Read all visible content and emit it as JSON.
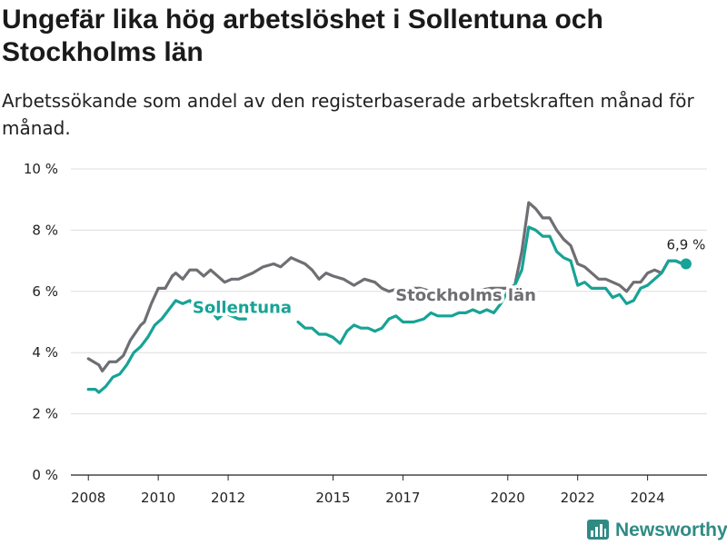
{
  "title": "Ungefär lika hög arbetslöshet i Sollentuna och Stockholms län",
  "subtitle": "Arbetssökande som andel av den registerbaserade arbetskraften månad för månad.",
  "brand": {
    "name": "Newsworthy",
    "icon": "newsworthy-logo-icon"
  },
  "colors": {
    "sollentuna": "#17a396",
    "stockholm": "#6e6e73",
    "grid": "#dddddd"
  },
  "chart_data": {
    "type": "line",
    "title": "Ungefär lika hög arbetslöshet i Sollentuna och Stockholms län",
    "xlabel": "",
    "ylabel": "",
    "xlim": [
      2007.5,
      2025.7
    ],
    "ylim": [
      0,
      10
    ],
    "y_ticks": [
      {
        "value": 0,
        "label": "0 %"
      },
      {
        "value": 2,
        "label": "2 %"
      },
      {
        "value": 4,
        "label": "4 %"
      },
      {
        "value": 6,
        "label": "6 %"
      },
      {
        "value": 8,
        "label": "8 %"
      },
      {
        "value": 10,
        "label": "10 %"
      }
    ],
    "x_ticks": [
      {
        "value": 2008,
        "label": "2008"
      },
      {
        "value": 2010,
        "label": "2010"
      },
      {
        "value": 2012,
        "label": "2012"
      },
      {
        "value": 2015,
        "label": "2015"
      },
      {
        "value": 2017,
        "label": "2017"
      },
      {
        "value": 2020,
        "label": "2020"
      },
      {
        "value": 2022,
        "label": "2022"
      },
      {
        "value": 2024,
        "label": "2024"
      }
    ],
    "grid": true,
    "legend": "inline labels",
    "last_value_label": "6,9 %",
    "series": [
      {
        "name": "Stockholms län",
        "label_at": [
          2018.8,
          5.7
        ],
        "points": [
          [
            2008.0,
            3.8
          ],
          [
            2008.3,
            3.6
          ],
          [
            2008.4,
            3.4
          ],
          [
            2008.6,
            3.7
          ],
          [
            2008.8,
            3.7
          ],
          [
            2009.0,
            3.9
          ],
          [
            2009.2,
            4.4
          ],
          [
            2009.5,
            4.9
          ],
          [
            2009.6,
            5.0
          ],
          [
            2009.8,
            5.6
          ],
          [
            2010.0,
            6.1
          ],
          [
            2010.2,
            6.1
          ],
          [
            2010.4,
            6.5
          ],
          [
            2010.5,
            6.6
          ],
          [
            2010.7,
            6.4
          ],
          [
            2010.9,
            6.7
          ],
          [
            2011.1,
            6.7
          ],
          [
            2011.3,
            6.5
          ],
          [
            2011.5,
            6.7
          ],
          [
            2011.7,
            6.5
          ],
          [
            2011.9,
            6.3
          ],
          [
            2012.1,
            6.4
          ],
          [
            2012.3,
            6.4
          ],
          [
            2012.5,
            6.5
          ],
          [
            2012.7,
            6.6
          ],
          [
            2013.0,
            6.8
          ],
          [
            2013.3,
            6.9
          ],
          [
            2013.5,
            6.8
          ],
          [
            2013.7,
            7.0
          ],
          [
            2013.8,
            7.1
          ],
          [
            2014.0,
            7.0
          ],
          [
            2014.2,
            6.9
          ],
          [
            2014.4,
            6.7
          ],
          [
            2014.6,
            6.4
          ],
          [
            2014.8,
            6.6
          ],
          [
            2015.0,
            6.5
          ],
          [
            2015.3,
            6.4
          ],
          [
            2015.6,
            6.2
          ],
          [
            2015.9,
            6.4
          ],
          [
            2016.2,
            6.3
          ],
          [
            2016.4,
            6.1
          ],
          [
            2016.6,
            6.0
          ],
          [
            2016.9,
            6.1
          ],
          [
            2017.2,
            6.1
          ],
          [
            2017.5,
            6.1
          ],
          [
            2017.8,
            6.0
          ],
          [
            2018.2,
            6.0
          ],
          [
            2018.6,
            5.9
          ],
          [
            2019.0,
            6.0
          ],
          [
            2019.5,
            6.1
          ],
          [
            2019.8,
            6.1
          ],
          [
            2020.0,
            6.1
          ],
          [
            2020.2,
            6.2
          ],
          [
            2020.4,
            7.3
          ],
          [
            2020.6,
            8.9
          ],
          [
            2020.8,
            8.7
          ],
          [
            2021.0,
            8.4
          ],
          [
            2021.2,
            8.4
          ],
          [
            2021.4,
            8.0
          ],
          [
            2021.6,
            7.7
          ],
          [
            2021.8,
            7.5
          ],
          [
            2022.0,
            6.9
          ],
          [
            2022.2,
            6.8
          ],
          [
            2022.4,
            6.6
          ],
          [
            2022.6,
            6.4
          ],
          [
            2022.8,
            6.4
          ],
          [
            2023.0,
            6.3
          ],
          [
            2023.2,
            6.2
          ],
          [
            2023.4,
            6.0
          ],
          [
            2023.6,
            6.3
          ],
          [
            2023.8,
            6.3
          ],
          [
            2024.0,
            6.6
          ],
          [
            2024.2,
            6.7
          ],
          [
            2024.4,
            6.6
          ],
          [
            2024.6,
            7.0
          ],
          [
            2024.8,
            7.0
          ],
          [
            2025.0,
            6.9
          ],
          [
            2025.1,
            6.9
          ]
        ]
      },
      {
        "name": "Sollentuna",
        "label_at": [
          2012.4,
          5.3
        ],
        "points": [
          [
            2008.0,
            2.8
          ],
          [
            2008.2,
            2.8
          ],
          [
            2008.3,
            2.7
          ],
          [
            2008.5,
            2.9
          ],
          [
            2008.7,
            3.2
          ],
          [
            2008.9,
            3.3
          ],
          [
            2009.1,
            3.6
          ],
          [
            2009.3,
            4.0
          ],
          [
            2009.5,
            4.2
          ],
          [
            2009.7,
            4.5
          ],
          [
            2009.9,
            4.9
          ],
          [
            2010.1,
            5.1
          ],
          [
            2010.3,
            5.4
          ],
          [
            2010.5,
            5.7
          ],
          [
            2010.7,
            5.6
          ],
          [
            2010.9,
            5.7
          ],
          [
            2011.1,
            5.4
          ],
          [
            2011.3,
            5.5
          ],
          [
            2011.5,
            5.4
          ],
          [
            2011.7,
            5.1
          ],
          [
            2011.9,
            5.3
          ],
          [
            2012.1,
            5.2
          ],
          [
            2012.3,
            5.1
          ],
          [
            2012.5,
            5.1
          ],
          null,
          [
            2014.0,
            5.0
          ],
          [
            2014.2,
            4.8
          ],
          [
            2014.4,
            4.8
          ],
          [
            2014.6,
            4.6
          ],
          [
            2014.8,
            4.6
          ],
          [
            2015.0,
            4.5
          ],
          [
            2015.2,
            4.3
          ],
          [
            2015.4,
            4.7
          ],
          [
            2015.6,
            4.9
          ],
          [
            2015.8,
            4.8
          ],
          [
            2016.0,
            4.8
          ],
          [
            2016.2,
            4.7
          ],
          [
            2016.4,
            4.8
          ],
          [
            2016.6,
            5.1
          ],
          [
            2016.8,
            5.2
          ],
          [
            2017.0,
            5.0
          ],
          [
            2017.3,
            5.0
          ],
          [
            2017.6,
            5.1
          ],
          [
            2017.8,
            5.3
          ],
          [
            2018.0,
            5.2
          ],
          [
            2018.2,
            5.2
          ],
          [
            2018.4,
            5.2
          ],
          [
            2018.6,
            5.3
          ],
          [
            2018.8,
            5.3
          ],
          [
            2019.0,
            5.4
          ],
          [
            2019.2,
            5.3
          ],
          [
            2019.4,
            5.4
          ],
          [
            2019.6,
            5.3
          ],
          [
            2019.8,
            5.6
          ],
          [
            2020.0,
            6.0
          ],
          [
            2020.2,
            6.2
          ],
          [
            2020.4,
            6.7
          ],
          [
            2020.6,
            8.1
          ],
          [
            2020.8,
            8.0
          ],
          [
            2021.0,
            7.8
          ],
          [
            2021.2,
            7.8
          ],
          [
            2021.4,
            7.3
          ],
          [
            2021.6,
            7.1
          ],
          [
            2021.8,
            7.0
          ],
          [
            2022.0,
            6.2
          ],
          [
            2022.2,
            6.3
          ],
          [
            2022.4,
            6.1
          ],
          [
            2022.6,
            6.1
          ],
          [
            2022.8,
            6.1
          ],
          [
            2023.0,
            5.8
          ],
          [
            2023.2,
            5.9
          ],
          [
            2023.4,
            5.6
          ],
          [
            2023.6,
            5.7
          ],
          [
            2023.8,
            6.1
          ],
          [
            2024.0,
            6.2
          ],
          [
            2024.2,
            6.4
          ],
          [
            2024.4,
            6.6
          ],
          [
            2024.6,
            7.0
          ],
          [
            2024.8,
            7.0
          ],
          [
            2025.0,
            6.9
          ],
          [
            2025.1,
            6.9
          ]
        ]
      }
    ]
  }
}
